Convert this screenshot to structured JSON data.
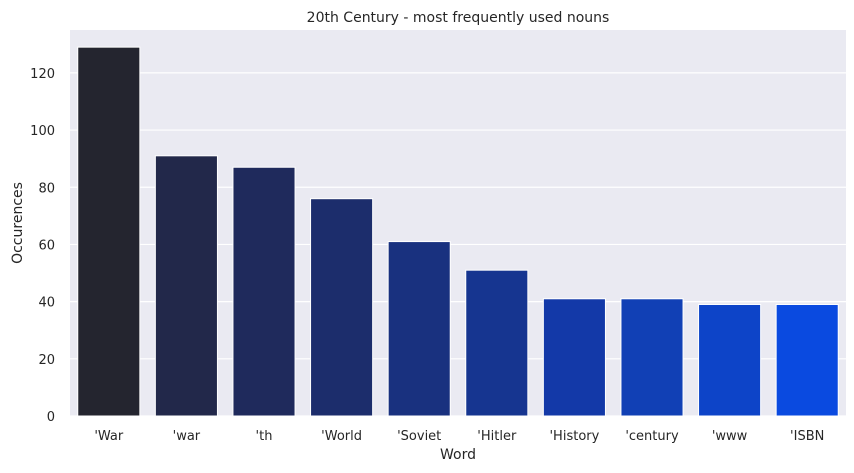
{
  "chart_data": {
    "type": "bar",
    "title": "20th Century - most frequently used nouns",
    "xlabel": "Word",
    "ylabel": "Occurences",
    "categories": [
      "'War",
      "'war",
      "'th",
      "'World",
      "'Soviet",
      "'Hitler",
      "'History",
      "'century",
      "'www",
      "'ISBN"
    ],
    "values": [
      129,
      91,
      87,
      76,
      61,
      51,
      41,
      41,
      39,
      39
    ],
    "ylim": [
      0,
      135
    ],
    "yticks": [
      0,
      20,
      40,
      60,
      80,
      100,
      120
    ],
    "grid": true,
    "colors": [
      "#24252f",
      "#22284a",
      "#1f2a5c",
      "#1c2d6c",
      "#19317f",
      "#163590",
      "#1339a8",
      "#1140b5",
      "#0d44c8",
      "#0a4ae0"
    ],
    "background": "#eaeaf2"
  }
}
